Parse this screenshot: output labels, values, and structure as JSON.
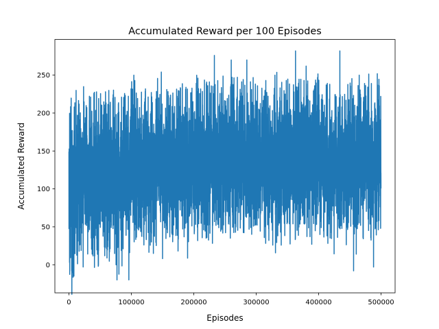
{
  "chart_data": {
    "type": "line",
    "title": "Accumulated Reward per 100 Episodes",
    "xlabel": "Episodes",
    "ylabel": "Accumulated Reward",
    "xlim": [
      -22500,
      522500
    ],
    "ylim": [
      -37,
      297
    ],
    "grid": false,
    "xticks": [
      {
        "value": 0,
        "label": "0"
      },
      {
        "value": 100000,
        "label": "100000"
      },
      {
        "value": 200000,
        "label": "200000"
      },
      {
        "value": 300000,
        "label": "300000"
      },
      {
        "value": 400000,
        "label": "400000"
      },
      {
        "value": 500000,
        "label": "500000"
      }
    ],
    "yticks": [
      {
        "value": 0,
        "label": "0"
      },
      {
        "value": 50,
        "label": "50"
      },
      {
        "value": 100,
        "label": "100"
      },
      {
        "value": 150,
        "label": "150"
      },
      {
        "value": 200,
        "label": "200"
      },
      {
        "value": 250,
        "label": "250"
      }
    ],
    "series": [
      {
        "color": "#1f77b4",
        "x_start": 0,
        "x_step": 100,
        "count": 5000,
        "segments": [
          {
            "x_from": 0,
            "x_to": 10000,
            "low": 5,
            "high": 190,
            "mean": 95
          },
          {
            "x_from": 10000,
            "x_to": 100000,
            "low": 25,
            "high": 205,
            "mean": 120
          },
          {
            "x_from": 100000,
            "x_to": 200000,
            "low": 55,
            "high": 215,
            "mean": 130
          },
          {
            "x_from": 200000,
            "x_to": 300000,
            "low": 60,
            "high": 225,
            "mean": 140
          },
          {
            "x_from": 300000,
            "x_to": 400000,
            "low": 55,
            "high": 220,
            "mean": 138
          },
          {
            "x_from": 400000,
            "x_to": 500000,
            "low": 55,
            "high": 215,
            "mean": 135
          }
        ],
        "notable_points": [
          {
            "x": 1000,
            "y": 3
          },
          {
            "x": 8000,
            "y": -15
          },
          {
            "x": 8500,
            "y": 208
          },
          {
            "x": 16000,
            "y": 212
          },
          {
            "x": 40000,
            "y": 226
          },
          {
            "x": 47000,
            "y": -2
          },
          {
            "x": 77000,
            "y": -20
          },
          {
            "x": 96000,
            "y": -20
          },
          {
            "x": 100000,
            "y": 228
          },
          {
            "x": 104000,
            "y": 250
          },
          {
            "x": 148000,
            "y": 254
          },
          {
            "x": 150000,
            "y": 8
          },
          {
            "x": 233000,
            "y": 276
          },
          {
            "x": 260000,
            "y": 270
          },
          {
            "x": 285000,
            "y": 270
          },
          {
            "x": 330000,
            "y": 250
          },
          {
            "x": 363000,
            "y": 282
          },
          {
            "x": 380000,
            "y": 262
          },
          {
            "x": 434000,
            "y": 282
          },
          {
            "x": 456000,
            "y": -8
          },
          {
            "x": 465000,
            "y": 250
          },
          {
            "x": 488000,
            "y": -3
          },
          {
            "x": 500000,
            "y": 145
          }
        ]
      }
    ]
  }
}
